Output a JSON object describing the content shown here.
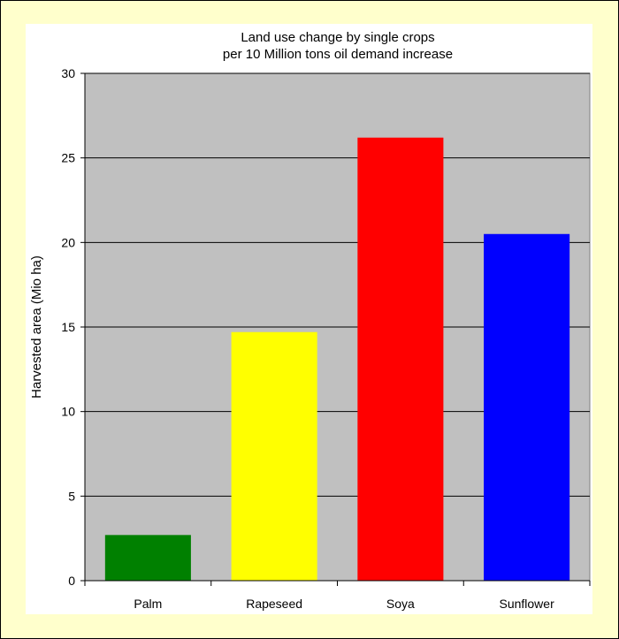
{
  "chart_data": {
    "type": "bar",
    "title_lines": [
      "Land use change by single crops",
      "per 10 Million tons oil demand increase"
    ],
    "xlabel": "",
    "ylabel": "Harvested area (Mio ha)",
    "categories": [
      "Palm",
      "Rapeseed",
      "Soya",
      "Sunflower"
    ],
    "values": [
      2.7,
      14.7,
      26.2,
      20.5
    ],
    "bar_colors": [
      "#008000",
      "#ffff00",
      "#ff0000",
      "#0000ff"
    ],
    "ylim": [
      0,
      30
    ],
    "yticks": [
      0,
      5,
      10,
      15,
      20,
      25,
      30
    ],
    "grid": true,
    "plot_background": "#c0c0c0",
    "page_background": "#ffffcc",
    "legend": "none"
  }
}
